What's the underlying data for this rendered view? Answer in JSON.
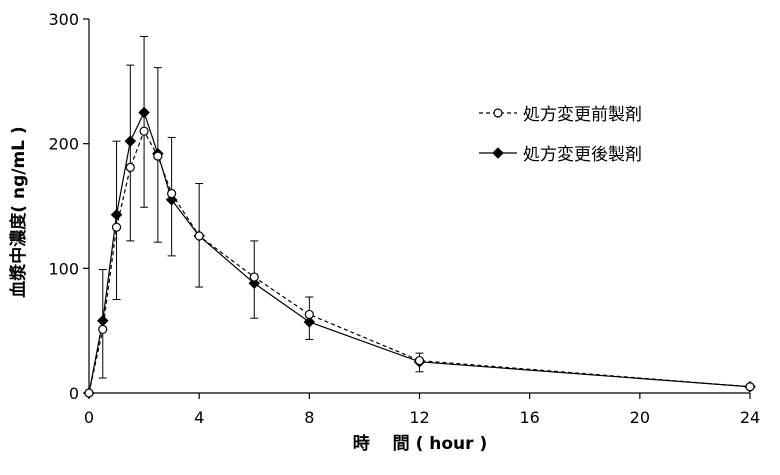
{
  "chart_data": {
    "type": "line",
    "xlabel": "時　 間 ( hour )",
    "ylabel": "血漿中濃度( ng/mL )",
    "xlim": [
      0,
      24
    ],
    "ylim": [
      0,
      300
    ],
    "x_ticks": [
      0,
      4,
      8,
      12,
      16,
      20,
      24
    ],
    "y_ticks": [
      0,
      100,
      200,
      300
    ],
    "grid": false,
    "legend_position": "upper-right",
    "series": [
      {
        "name": "処方変更前製剤",
        "marker": "open-circle",
        "line_style": "dashed",
        "color": "#000000",
        "x": [
          0,
          0.5,
          1,
          1.5,
          2,
          2.5,
          3,
          4,
          6,
          8,
          12,
          24
        ],
        "y": [
          0,
          51,
          133,
          181,
          210,
          190,
          160,
          126,
          93,
          63,
          26,
          5
        ]
      },
      {
        "name": "処方変更後製剤",
        "marker": "filled-diamond",
        "line_style": "solid",
        "color": "#000000",
        "x": [
          0,
          0.5,
          1,
          1.5,
          2,
          2.5,
          3,
          4,
          6,
          8,
          12,
          24
        ],
        "y": [
          0,
          58,
          143,
          202,
          225,
          192,
          155,
          126,
          88,
          57,
          25,
          5
        ],
        "error_bars": [
          {
            "x": 0.5,
            "low": 12,
            "high": 99
          },
          {
            "x": 1,
            "low": 75,
            "high": 202
          },
          {
            "x": 1.5,
            "low": 122,
            "high": 263
          },
          {
            "x": 2,
            "low": 149,
            "high": 286
          },
          {
            "x": 2.5,
            "low": 121,
            "high": 261
          },
          {
            "x": 3,
            "low": 110,
            "high": 205
          },
          {
            "x": 4,
            "low": 85,
            "high": 168
          },
          {
            "x": 6,
            "low": 60,
            "high": 122
          },
          {
            "x": 8,
            "low": 43,
            "high": 77
          },
          {
            "x": 12,
            "low": 17,
            "high": 32
          }
        ]
      }
    ]
  }
}
